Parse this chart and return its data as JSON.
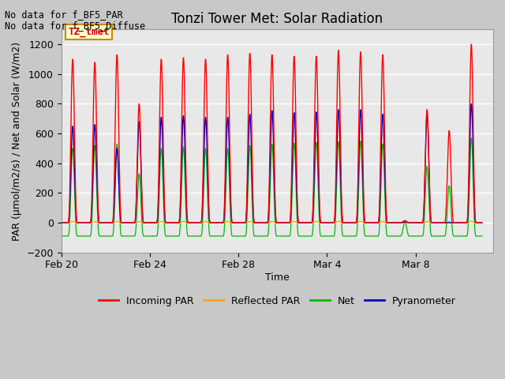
{
  "title": "Tonzi Tower Met: Solar Radiation",
  "xlabel": "Time",
  "ylabel": "PAR (μmol/m2/s) / Net and Solar (W/m2)",
  "ylim": [
    -200,
    1300
  ],
  "yticks": [
    -200,
    0,
    200,
    400,
    600,
    800,
    1000,
    1200
  ],
  "legend_labels": [
    "Incoming PAR",
    "Reflected PAR",
    "Net",
    "Pyranometer"
  ],
  "legend_colors": [
    "#ff0000",
    "#ffa500",
    "#00bb00",
    "#0000cc"
  ],
  "no_data_text_1": "No data for f_BF5_PAR",
  "no_data_text_2": "No data for f_BF5_Diffuse",
  "annotation_label": "TZ_tmet",
  "annotation_bg": "#ffffcc",
  "annotation_border": "#cc8800",
  "annotation_text_color": "#cc0000",
  "fig_bg": "#c8c8c8",
  "plot_bg": "#e8e8e8",
  "xlim": [
    51.0,
    70.5
  ],
  "xtick_positions": [
    51,
    55,
    59,
    63,
    67
  ],
  "xtick_labels": [
    "Feb 20",
    "Feb 24",
    "Feb 28",
    "Mar 4",
    "Mar 8"
  ],
  "day_peaks": [
    [
      51,
      1100,
      650,
      500,
      85
    ],
    [
      52,
      1080,
      660,
      520,
      80
    ],
    [
      53,
      1130,
      500,
      530,
      90
    ],
    [
      54,
      800,
      680,
      330,
      82
    ],
    [
      55,
      1100,
      710,
      500,
      88
    ],
    [
      56,
      1110,
      720,
      510,
      90
    ],
    [
      57,
      1100,
      710,
      500,
      85
    ],
    [
      58,
      1130,
      710,
      500,
      88
    ],
    [
      59,
      1140,
      730,
      520,
      92
    ],
    [
      60,
      1130,
      755,
      530,
      93
    ],
    [
      61,
      1120,
      740,
      535,
      98
    ],
    [
      62,
      1120,
      745,
      540,
      98
    ],
    [
      63,
      1160,
      760,
      545,
      103
    ],
    [
      64,
      1150,
      760,
      550,
      102
    ],
    [
      65,
      1130,
      730,
      530,
      93
    ],
    [
      66,
      15,
      5,
      5,
      2
    ],
    [
      67,
      760,
      730,
      380,
      88
    ],
    [
      68,
      620,
      0,
      250,
      85
    ],
    [
      69,
      1200,
      800,
      570,
      108
    ]
  ],
  "title_fontsize": 12,
  "axis_label_fontsize": 9,
  "tick_fontsize": 9,
  "legend_fontsize": 9
}
